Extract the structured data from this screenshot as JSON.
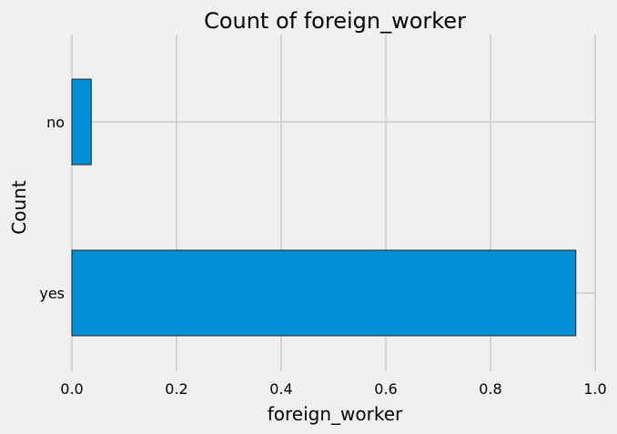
{
  "chart_data": {
    "type": "bar",
    "orientation": "horizontal",
    "title": "Count of foreign_worker",
    "xlabel": "foreign_worker",
    "ylabel": "Count",
    "categories": [
      "no",
      "yes"
    ],
    "values": [
      0.037,
      0.963
    ],
    "xlim": [
      0.0,
      1.0
    ],
    "xticks": [
      "0.0",
      "0.2",
      "0.4",
      "0.6",
      "0.8",
      "1.0"
    ],
    "grid": true,
    "bar_color": "#008fd5",
    "background_color": "#f0f0f0"
  }
}
